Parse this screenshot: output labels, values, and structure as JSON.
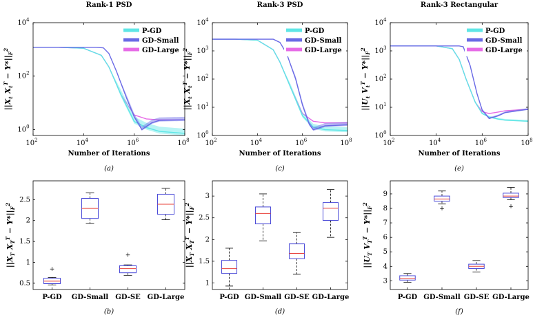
{
  "figure": {
    "line_series": [
      {
        "name": "P-GD",
        "color": "#5fe6e6"
      },
      {
        "name": "GD-Small",
        "color": "#6a6ae6"
      },
      {
        "name": "GD-Large",
        "color": "#e66ae6"
      }
    ],
    "box_color": "#4a4ad8",
    "median_color": "#e8403a",
    "outlier_color": "#e8403a"
  },
  "chart_data": [
    {
      "type": "line",
      "title": "Rank-1 PSD",
      "caption": "(a)",
      "xlabel": "Number of Iterations",
      "ylabel": "||X_t X_t^T − Y*||_F^2",
      "xscale": "log",
      "yscale": "log",
      "xlim": [
        100,
        100000000
      ],
      "ylim": [
        0.6,
        10000
      ],
      "xticks": [
        {
          "v": 100,
          "exp": "2"
        },
        {
          "v": 10000,
          "exp": "4"
        },
        {
          "v": 1000000,
          "exp": "6"
        },
        {
          "v": 100000000,
          "exp": "8"
        }
      ],
      "yticks": [
        {
          "v": 1,
          "exp": "0"
        },
        {
          "v": 100,
          "exp": "2"
        },
        {
          "v": 10000,
          "exp": "4"
        }
      ],
      "legend_location": "top-right",
      "series": [
        {
          "name": "P-GD",
          "x": [
            100,
            1000,
            10000,
            50000,
            100000,
            300000,
            1000000,
            3000000,
            10000000,
            100000000
          ],
          "y": [
            1200,
            1200,
            1100,
            600,
            220,
            20,
            2,
            1.2,
            0.85,
            0.72
          ],
          "band": [
            1.2,
            1.5
          ]
        },
        {
          "name": "GD-Small",
          "x": [
            100,
            1000,
            30000,
            60000,
            100000,
            200000,
            500000,
            1000000,
            2000000,
            3000000,
            5000000,
            10000000,
            100000000
          ],
          "y": [
            1200,
            1200,
            1200,
            1150,
            700,
            150,
            15,
            3,
            1,
            1.3,
            1.8,
            2.2,
            2.3
          ],
          "band": [
            1.1,
            1.3
          ]
        },
        {
          "name": "GD-Large",
          "x": [
            100,
            1000,
            10000,
            50000,
            100000,
            300000,
            1000000,
            3000000,
            10000000,
            100000000
          ],
          "y": [
            1200,
            1200,
            1100,
            600,
            220,
            20,
            3.5,
            2.5,
            2.3,
            2.3
          ],
          "band": [
            1,
            1
          ]
        }
      ]
    },
    {
      "type": "line",
      "title": "Rank-3 PSD",
      "caption": "(c)",
      "xlabel": "Number of Iterations",
      "ylabel": "||X_t X_t^T − Y*||_F^2",
      "xscale": "log",
      "yscale": "log",
      "xlim": [
        100,
        100000000
      ],
      "ylim": [
        1,
        10000
      ],
      "xticks": [
        {
          "v": 100,
          "exp": "2"
        },
        {
          "v": 10000,
          "exp": "4"
        },
        {
          "v": 1000000,
          "exp": "6"
        },
        {
          "v": 100000000,
          "exp": "8"
        }
      ],
      "yticks": [
        {
          "v": 1,
          "exp": "0"
        },
        {
          "v": 10,
          "exp": "1"
        },
        {
          "v": 100,
          "exp": "2"
        },
        {
          "v": 1000,
          "exp": "3"
        },
        {
          "v": 10000,
          "exp": "4"
        }
      ],
      "legend_location": "top-right",
      "series": [
        {
          "name": "P-GD",
          "x": [
            100,
            1000,
            10000,
            50000,
            100000,
            300000,
            1000000,
            3000000,
            10000000,
            100000000
          ],
          "y": [
            2600,
            2600,
            2400,
            1100,
            400,
            50,
            5,
            2,
            1.6,
            1.5
          ],
          "band": [
            1.15,
            1.3
          ]
        },
        {
          "name": "GD-Small",
          "x": [
            100,
            1000,
            50000,
            100000,
            200000,
            500000,
            1000000,
            2000000,
            3000000,
            5000000,
            10000000,
            100000000
          ],
          "y": [
            2600,
            2600,
            2600,
            2000,
            800,
            100,
            12,
            2.5,
            1.6,
            1.8,
            2.2,
            2.4
          ],
          "band": [
            1.1,
            1.25
          ]
        },
        {
          "name": "GD-Large",
          "x": [
            100,
            1000,
            10000,
            50000,
            100000,
            300000,
            1000000,
            3000000,
            10000000,
            100000000
          ],
          "y": [
            2600,
            2600,
            2400,
            1100,
            400,
            50,
            6,
            3.2,
            2.8,
            2.8
          ],
          "band": [
            1,
            1
          ]
        }
      ]
    },
    {
      "type": "line",
      "title": "Rank-3 Rectangular",
      "caption": "(e)",
      "xlabel": "Number of Iterations",
      "ylabel": "||U_t V_t^T − Y*||_F^2",
      "xscale": "log",
      "yscale": "log",
      "xlim": [
        100,
        100000000
      ],
      "ylim": [
        1,
        10000
      ],
      "xticks": [
        {
          "v": 100,
          "exp": "2"
        },
        {
          "v": 10000,
          "exp": "4"
        },
        {
          "v": 1000000,
          "exp": "6"
        },
        {
          "v": 100000000,
          "exp": "8"
        }
      ],
      "yticks": [
        {
          "v": 1,
          "exp": "0"
        },
        {
          "v": 10,
          "exp": "1"
        },
        {
          "v": 100,
          "exp": "2"
        },
        {
          "v": 1000,
          "exp": "3"
        },
        {
          "v": 10000,
          "exp": "4"
        }
      ],
      "legend_location": "top-right",
      "series": [
        {
          "name": "P-GD",
          "x": [
            100,
            10000,
            50000,
            100000,
            200000,
            500000,
            1000000,
            2000000,
            5000000,
            10000000,
            100000000
          ],
          "y": [
            1500,
            1500,
            1200,
            500,
            100,
            15,
            6,
            4.5,
            3.8,
            3.5,
            3.2
          ],
          "band": [
            1.05,
            1.1
          ]
        },
        {
          "name": "GD-Small",
          "x": [
            100,
            10000,
            100000,
            150000,
            300000,
            600000,
            1000000,
            2000000,
            5000000,
            10000000,
            100000000
          ],
          "y": [
            1500,
            1500,
            1500,
            1400,
            300,
            30,
            8,
            4,
            5,
            6.5,
            8.5
          ],
          "band": [
            1.05,
            1.1
          ]
        },
        {
          "name": "GD-Large",
          "x": [
            100,
            10000,
            50000,
            100000,
            200000,
            500000,
            1000000,
            2000000,
            5000000,
            10000000,
            100000000
          ],
          "y": [
            1500,
            1500,
            1200,
            500,
            100,
            15,
            7,
            6,
            6.8,
            7.5,
            8.5
          ],
          "band": [
            1,
            1
          ]
        }
      ]
    },
    {
      "type": "box",
      "caption": "(b)",
      "ylabel": "||X_T X_T^T − Y*||_F^2",
      "ylim": [
        0.35,
        2.95
      ],
      "yticks": [
        0.5,
        1,
        1.5,
        2,
        2.5
      ],
      "categories": [
        "P-GD",
        "GD-Small",
        "GD-SE",
        "GD-Large"
      ],
      "boxes": [
        {
          "min": 0.46,
          "q1": 0.49,
          "median": 0.55,
          "q3": 0.62,
          "max": 0.64,
          "outliers": [
            0.84
          ]
        },
        {
          "min": 1.93,
          "q1": 2.05,
          "median": 2.29,
          "q3": 2.53,
          "max": 2.66,
          "outliers": []
        },
        {
          "min": 0.69,
          "q1": 0.75,
          "median": 0.85,
          "q3": 0.92,
          "max": 0.94,
          "outliers": [
            1.18
          ]
        },
        {
          "min": 2.02,
          "q1": 2.15,
          "median": 2.39,
          "q3": 2.63,
          "max": 2.77,
          "outliers": []
        }
      ]
    },
    {
      "type": "box",
      "caption": "(d)",
      "ylabel": "||X_T X_T^T − Y*||_F^2",
      "ylim": [
        0.85,
        3.35
      ],
      "yticks": [
        1,
        1.5,
        2,
        2.5,
        3
      ],
      "categories": [
        "P-GD",
        "GD-Small",
        "GD-SE",
        "GD-Large"
      ],
      "boxes": [
        {
          "min": 0.93,
          "q1": 1.22,
          "median": 1.33,
          "q3": 1.52,
          "max": 1.8,
          "outliers": []
        },
        {
          "min": 1.97,
          "q1": 2.36,
          "median": 2.6,
          "q3": 2.75,
          "max": 3.05,
          "outliers": []
        },
        {
          "min": 1.2,
          "q1": 1.56,
          "median": 1.68,
          "q3": 1.9,
          "max": 2.16,
          "outliers": []
        },
        {
          "min": 2.05,
          "q1": 2.44,
          "median": 2.72,
          "q3": 2.85,
          "max": 3.15,
          "outliers": []
        }
      ]
    },
    {
      "type": "box",
      "caption": "(f)",
      "ylabel": "||U_T V_T^T − Y*||_F^2",
      "ylim": [
        2.4,
        9.9
      ],
      "yticks": [
        3,
        4,
        5,
        6,
        7,
        8,
        9
      ],
      "categories": [
        "P-GD",
        "GD-Small",
        "GD-SE",
        "GD-Large"
      ],
      "boxes": [
        {
          "min": 2.9,
          "q1": 3.05,
          "median": 3.15,
          "q3": 3.35,
          "max": 3.5,
          "outliers": []
        },
        {
          "min": 8.3,
          "q1": 8.5,
          "median": 8.65,
          "q3": 8.85,
          "max": 9.2,
          "outliers": [
            8
          ]
        },
        {
          "min": 3.6,
          "q1": 3.85,
          "median": 4,
          "q3": 4.15,
          "max": 4.4,
          "outliers": []
        },
        {
          "min": 8.6,
          "q1": 8.75,
          "median": 8.85,
          "q3": 9.05,
          "max": 9.45,
          "outliers": [
            8.15
          ]
        }
      ]
    }
  ]
}
